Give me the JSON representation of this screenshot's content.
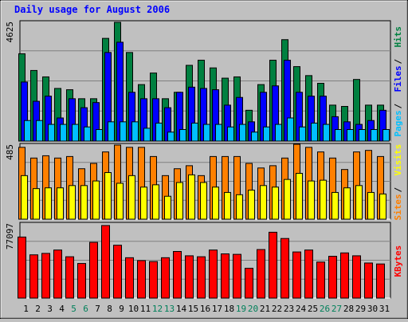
{
  "chart_data": {
    "type": "bar",
    "title": "Daily usage for August 2006",
    "categories": [
      "1",
      "2",
      "3",
      "4",
      "5",
      "6",
      "7",
      "8",
      "9",
      "10",
      "11",
      "12",
      "13",
      "14",
      "15",
      "16",
      "17",
      "18",
      "19",
      "20",
      "21",
      "22",
      "23",
      "24",
      "25",
      "26",
      "27",
      "28",
      "29",
      "30",
      "31"
    ],
    "weekend_days": [
      "5",
      "6",
      "12",
      "13",
      "19",
      "20",
      "26",
      "27"
    ],
    "panels": [
      {
        "name": "hits_files_pages",
        "ymax": 4625,
        "ymax_label": "4625",
        "right_labels": [
          "Pages",
          "Files",
          "Hits"
        ],
        "series": [
          {
            "name": "Hits",
            "color": "#008040",
            "values": [
              3400,
              2750,
              2500,
              2050,
              2000,
              1650,
              1650,
              4000,
              4625,
              3450,
              2200,
              2650,
              1650,
              1900,
              2950,
              3150,
              2850,
              2450,
              2500,
              1200,
              2200,
              3150,
              3950,
              2900,
              2550,
              2250,
              1400,
              1350,
              2400,
              1400,
              1400
            ]
          },
          {
            "name": "Files",
            "color": "#0000ff",
            "values": [
              2300,
              1550,
              1750,
              900,
              1650,
              1300,
              1500,
              3450,
              3850,
              1900,
              1650,
              1650,
              1300,
              1900,
              2100,
              2050,
              2000,
              1400,
              1700,
              750,
              1900,
              2150,
              3150,
              1900,
              1750,
              1750,
              950,
              750,
              650,
              800,
              1200
            ]
          },
          {
            "name": "Pages",
            "color": "#00c0ff",
            "values": [
              800,
              800,
              650,
              650,
              650,
              550,
              450,
              750,
              750,
              750,
              500,
              700,
              350,
              450,
              700,
              650,
              650,
              550,
              650,
              350,
              550,
              650,
              900,
              550,
              700,
              650,
              450,
              450,
              450,
              450,
              450
            ]
          }
        ]
      },
      {
        "name": "sites_visits",
        "ymax": 485,
        "ymax_label": "485",
        "right_labels": [
          "Sites",
          "Visits"
        ],
        "series": [
          {
            "name": "Sites",
            "color": "#ff8000",
            "values": [
              470,
              400,
              415,
              400,
              410,
              330,
              365,
              440,
              485,
              470,
              470,
              410,
              285,
              330,
              350,
              285,
              410,
              410,
              410,
              365,
              335,
              350,
              400,
              490,
              470,
              440,
              400,
              325,
              440,
              450,
              410
            ]
          },
          {
            "name": "Visits",
            "color": "#ffff00",
            "values": [
              285,
              200,
              205,
              205,
              220,
              220,
              250,
              305,
              235,
              285,
              210,
              225,
              150,
              240,
              290,
              240,
              210,
              175,
              160,
              190,
              220,
              210,
              260,
              300,
              250,
              255,
              175,
              205,
              220,
              175,
              165
            ]
          }
        ]
      },
      {
        "name": "kbytes",
        "ymax": 77097,
        "ymax_label": "77097",
        "right_labels": [
          "KBytes"
        ],
        "series": [
          {
            "name": "KBytes",
            "color": "#ff0000",
            "values": [
              63500,
              45000,
              46500,
              50000,
              43000,
              36000,
              58000,
              75500,
              55000,
              42000,
              39000,
              38000,
              42000,
              48500,
              44000,
              43000,
              50000,
              46000,
              45500,
              31000,
              50500,
              68500,
              62000,
              48000,
              50000,
              37500,
              43500,
              47000,
              44000,
              36500,
              35500
            ]
          }
        ]
      }
    ]
  }
}
